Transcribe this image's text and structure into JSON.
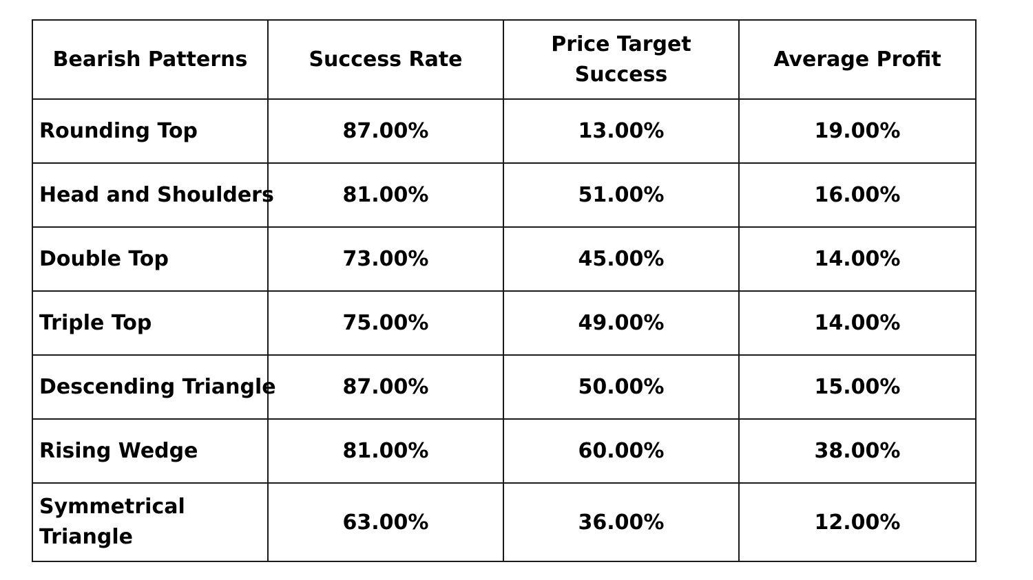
{
  "table": {
    "headers": [
      "Bearish Patterns",
      "Success Rate",
      "Price Target Success",
      "Average Profit"
    ],
    "rows": [
      {
        "pattern": "Rounding Top",
        "success_rate": "87.00%",
        "price_target_success": "13.00%",
        "average_profit": "19.00%"
      },
      {
        "pattern": "Head and Shoulders",
        "success_rate": "81.00%",
        "price_target_success": "51.00%",
        "average_profit": "16.00%"
      },
      {
        "pattern": "Double Top",
        "success_rate": "73.00%",
        "price_target_success": "45.00%",
        "average_profit": "14.00%"
      },
      {
        "pattern": "Triple Top",
        "success_rate": "75.00%",
        "price_target_success": "49.00%",
        "average_profit": "14.00%"
      },
      {
        "pattern": "Descending Triangle",
        "success_rate": "87.00%",
        "price_target_success": "50.00%",
        "average_profit": "15.00%"
      },
      {
        "pattern": "Rising Wedge",
        "success_rate": "81.00%",
        "price_target_success": "60.00%",
        "average_profit": "38.00%"
      },
      {
        "pattern": "Symmetrical Triangle",
        "success_rate": "63.00%",
        "price_target_success": "36.00%",
        "average_profit": "12.00%"
      }
    ]
  }
}
